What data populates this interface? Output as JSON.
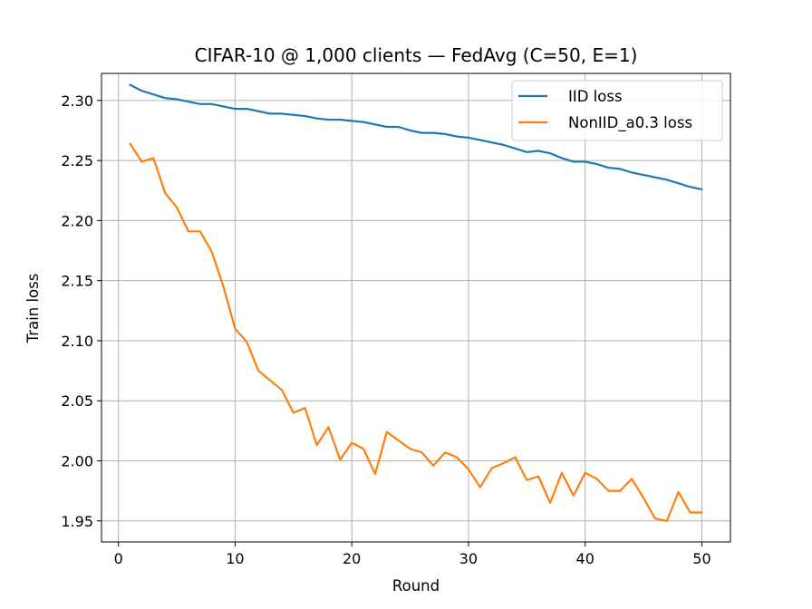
{
  "chart_data": {
    "type": "line",
    "title": "CIFAR-10 @ 1,000 clients — FedAvg (C=50, E=1)",
    "xlabel": "Round",
    "ylabel": "Train loss",
    "xlim": [
      -1.45,
      52.45
    ],
    "ylim": [
      1.9325,
      2.3225
    ],
    "xticks": [
      0,
      10,
      20,
      30,
      40,
      50
    ],
    "yticks": [
      1.95,
      2.0,
      2.05,
      2.1,
      2.15,
      2.2,
      2.25,
      2.3
    ],
    "xtick_labels": [
      "0",
      "10",
      "20",
      "30",
      "40",
      "50"
    ],
    "ytick_labels": [
      "1.95",
      "2.00",
      "2.05",
      "2.10",
      "2.15",
      "2.20",
      "2.25",
      "2.30"
    ],
    "grid": true,
    "legend_position": "top-right",
    "x": [
      1,
      2,
      3,
      4,
      5,
      6,
      7,
      8,
      9,
      10,
      11,
      12,
      13,
      14,
      15,
      16,
      17,
      18,
      19,
      20,
      21,
      22,
      23,
      24,
      25,
      26,
      27,
      28,
      29,
      30,
      31,
      32,
      33,
      34,
      35,
      36,
      37,
      38,
      39,
      40,
      41,
      42,
      43,
      44,
      45,
      46,
      47,
      48,
      49,
      50
    ],
    "series": [
      {
        "name": "IID loss",
        "color": "#1f77b4",
        "values": [
          2.313,
          2.308,
          2.305,
          2.302,
          2.301,
          2.299,
          2.297,
          2.297,
          2.295,
          2.293,
          2.293,
          2.291,
          2.289,
          2.289,
          2.288,
          2.287,
          2.285,
          2.284,
          2.284,
          2.283,
          2.282,
          2.28,
          2.278,
          2.278,
          2.275,
          2.273,
          2.273,
          2.272,
          2.27,
          2.269,
          2.267,
          2.265,
          2.263,
          2.26,
          2.257,
          2.258,
          2.256,
          2.252,
          2.249,
          2.249,
          2.247,
          2.244,
          2.243,
          2.24,
          2.238,
          2.236,
          2.234,
          2.231,
          2.228,
          2.226
        ]
      },
      {
        "name": "NonIID_a0.3 loss",
        "color": "#ff7f0e",
        "values": [
          2.264,
          2.249,
          2.252,
          2.223,
          2.211,
          2.191,
          2.191,
          2.174,
          2.145,
          2.11,
          2.099,
          2.075,
          2.067,
          2.059,
          2.04,
          2.044,
          2.013,
          2.028,
          2.001,
          2.015,
          2.01,
          1.989,
          2.024,
          2.017,
          2.01,
          2.007,
          1.996,
          2.007,
          2.003,
          1.993,
          1.978,
          1.994,
          1.998,
          2.003,
          1.984,
          1.987,
          1.965,
          1.99,
          1.971,
          1.99,
          1.985,
          1.975,
          1.975,
          1.985,
          1.969,
          1.952,
          1.95,
          1.974,
          1.957,
          1.957
        ]
      }
    ]
  }
}
